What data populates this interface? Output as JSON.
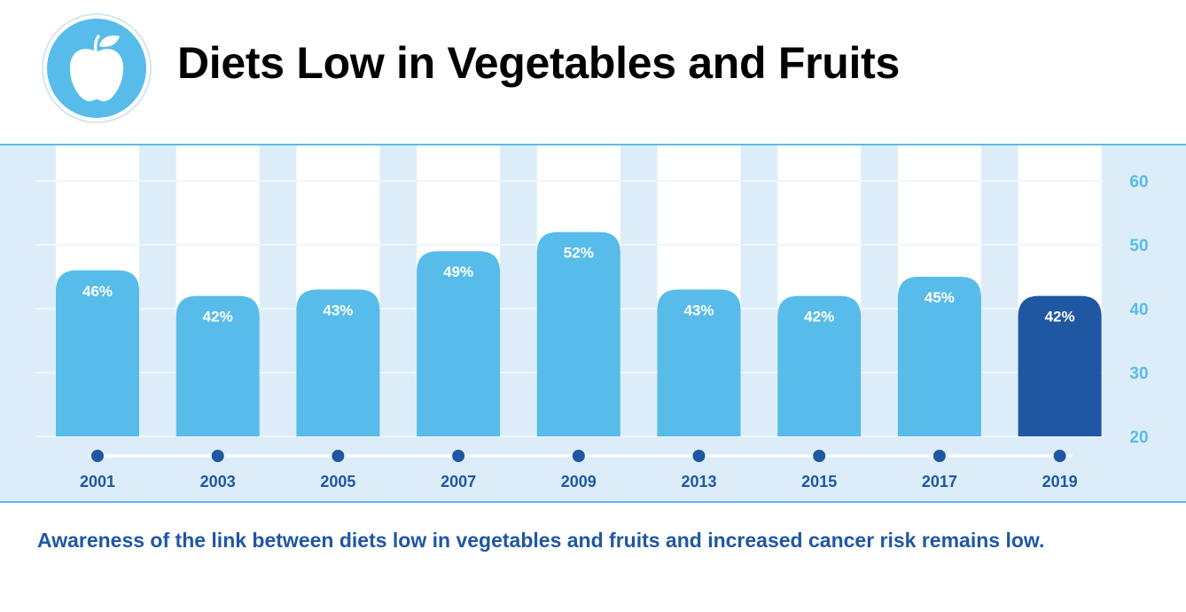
{
  "header": {
    "title": "Diets Low in Vegetables and Fruits",
    "icon": "apple-icon"
  },
  "caption": "Awareness of the link between diets low in vegetables and fruits and increased cancer risk remains low.",
  "colors": {
    "panel_bg": "#dcedf9",
    "bar": "#58bcea",
    "bar_highlight": "#1f57a3",
    "accent_dark": "#1f57a3",
    "tick_label": "#58bcea",
    "panel_border": "#58bcea",
    "logo_circle": "#58bcea"
  },
  "chart_data": {
    "type": "bar",
    "title": "Diets Low in Vegetables and Fruits",
    "categories": [
      "2001",
      "2003",
      "2005",
      "2007",
      "2009",
      "2013",
      "2015",
      "2017",
      "2019"
    ],
    "values": [
      46,
      42,
      43,
      49,
      52,
      43,
      42,
      45,
      42
    ],
    "value_labels": [
      "46%",
      "42%",
      "43%",
      "49%",
      "52%",
      "43%",
      "42%",
      "45%",
      "42%"
    ],
    "highlight_index": 8,
    "ylim": [
      20,
      60
    ],
    "yticks": [
      20,
      30,
      40,
      50,
      60
    ],
    "ytick_labels": [
      "20",
      "30",
      "40",
      "50",
      "60"
    ],
    "y_axis_position": "right",
    "grid": true,
    "xlabel": "",
    "ylabel": ""
  }
}
